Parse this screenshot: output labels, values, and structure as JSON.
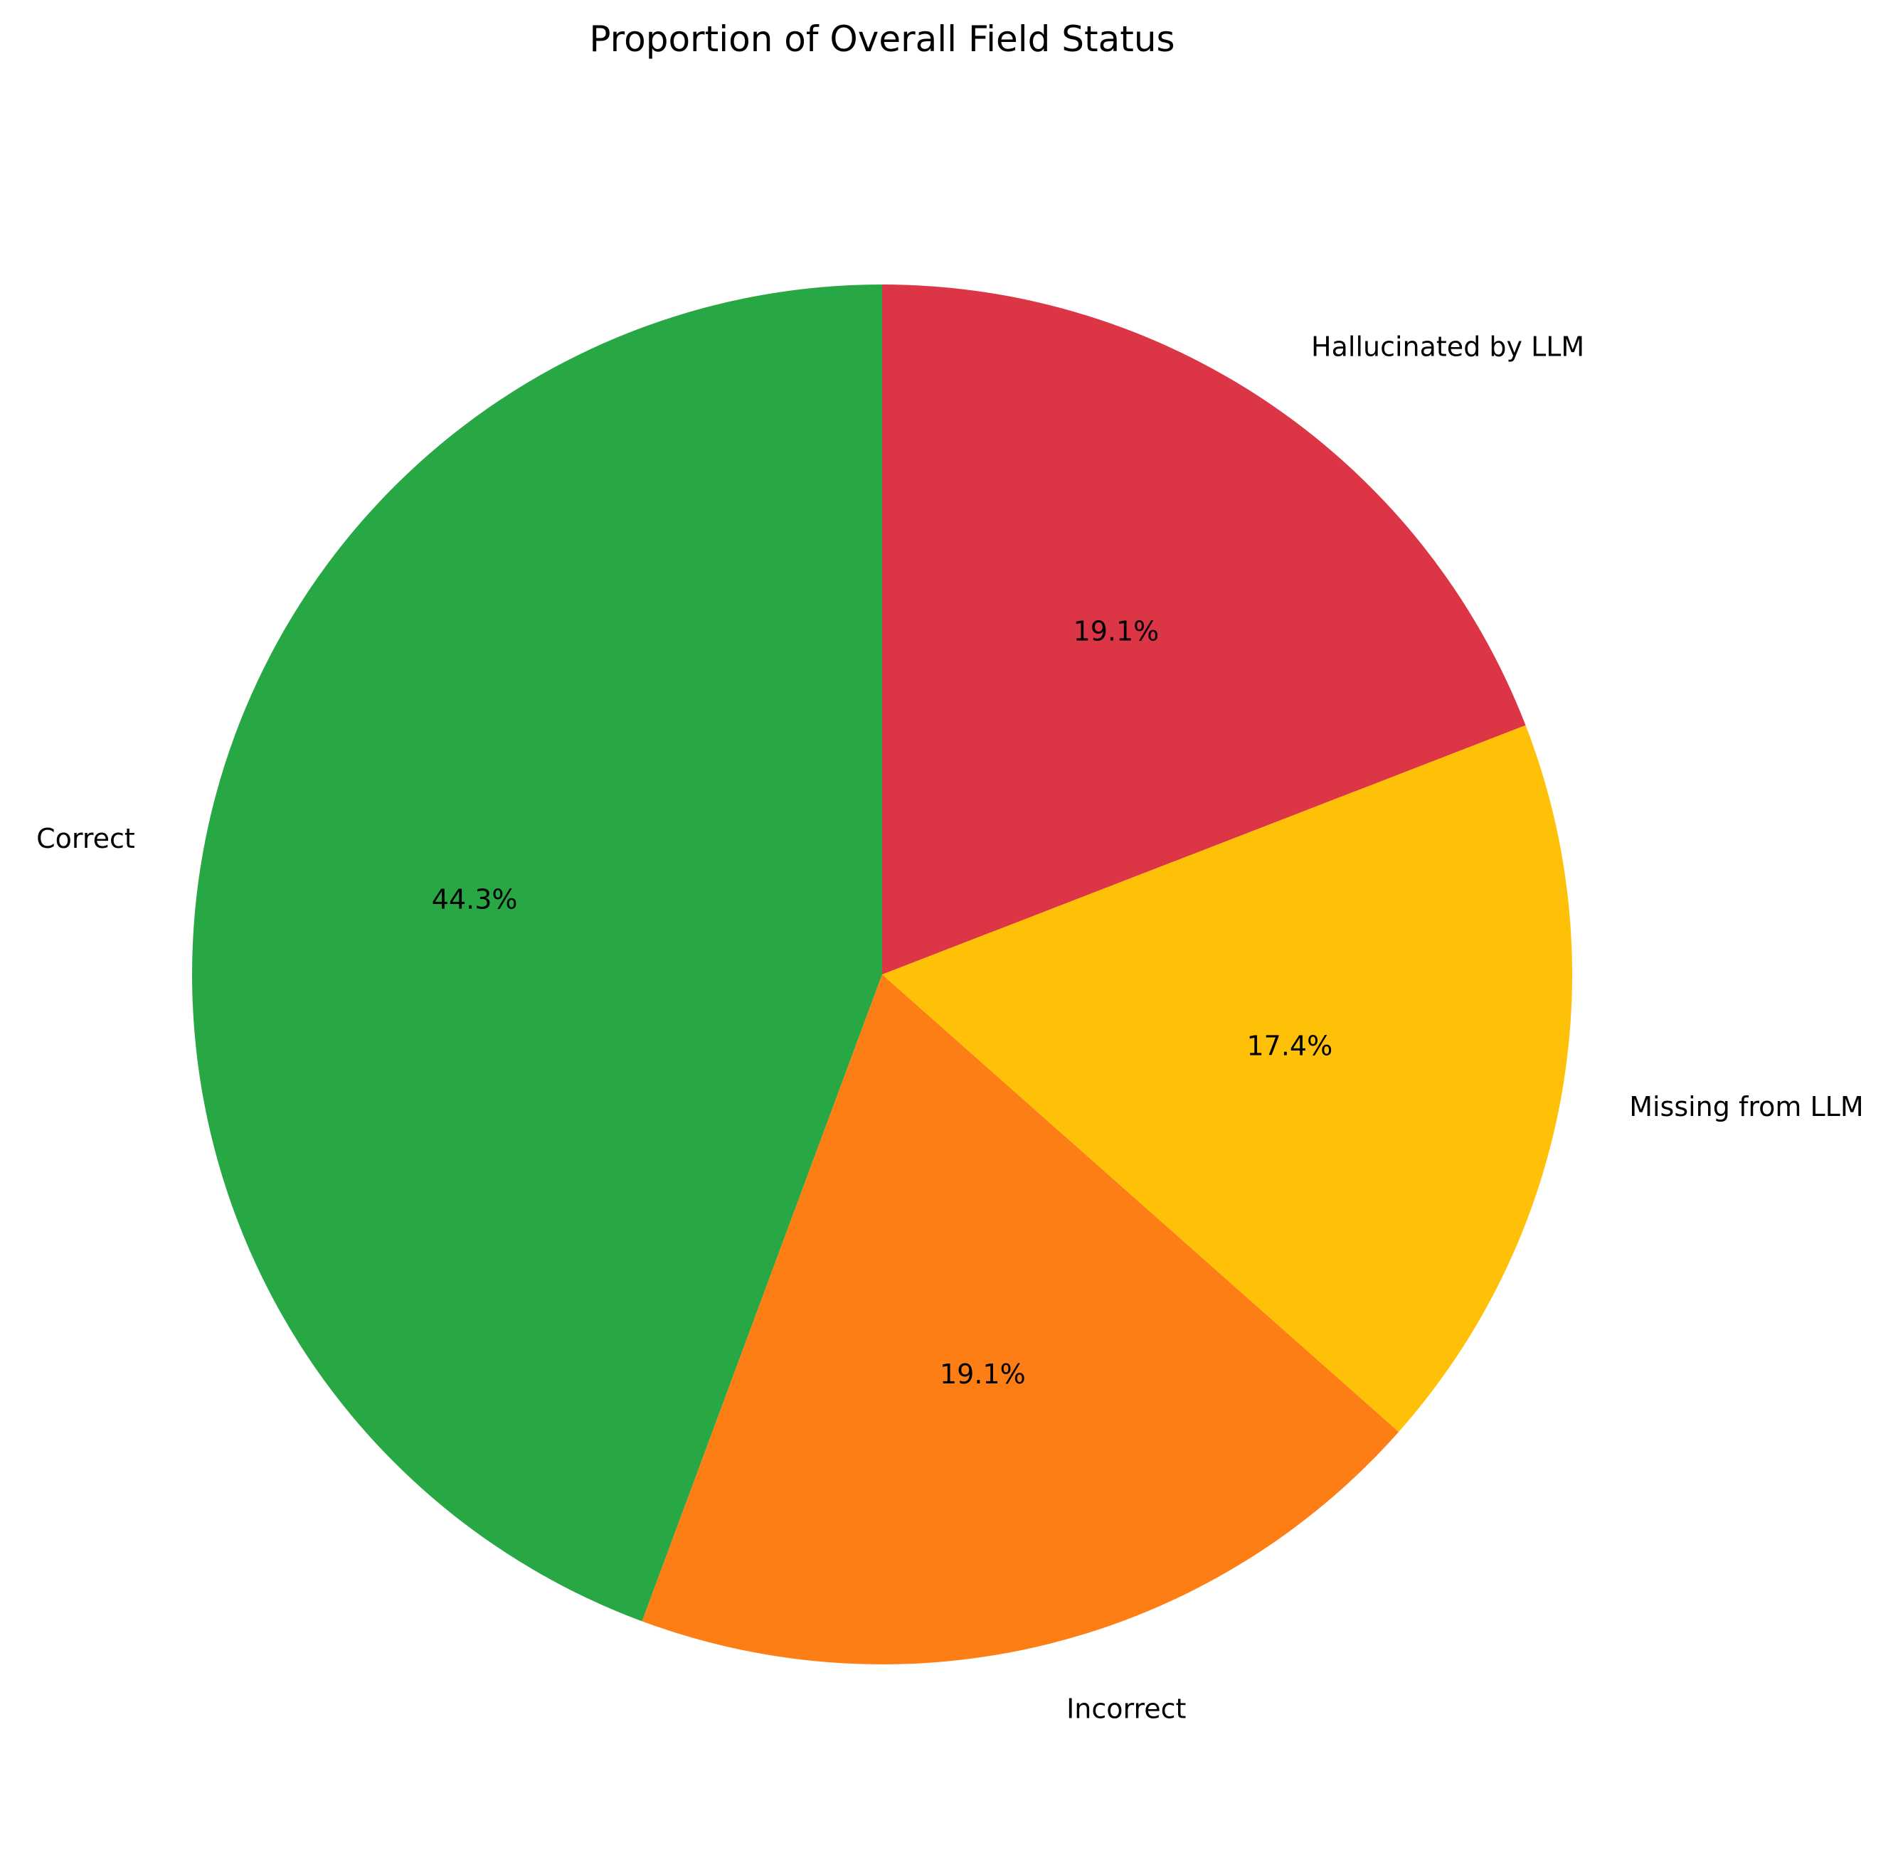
{
  "chart_data": {
    "type": "pie",
    "title": "Proportion of Overall Field Status",
    "start_angle": 90,
    "direction": "counterclockwise",
    "slices": [
      {
        "label": "Correct",
        "value": 44.3,
        "pct_label": "44.3%",
        "color": "#28a745"
      },
      {
        "label": "Incorrect",
        "value": 19.1,
        "pct_label": "19.1%",
        "color": "#fd7e14"
      },
      {
        "label": "Missing from LLM",
        "value": 17.4,
        "pct_label": "17.4%",
        "color": "#ffc107"
      },
      {
        "label": "Hallucinated by LLM",
        "value": 19.1,
        "pct_label": "19.1%",
        "color": "#dc3545"
      }
    ]
  }
}
